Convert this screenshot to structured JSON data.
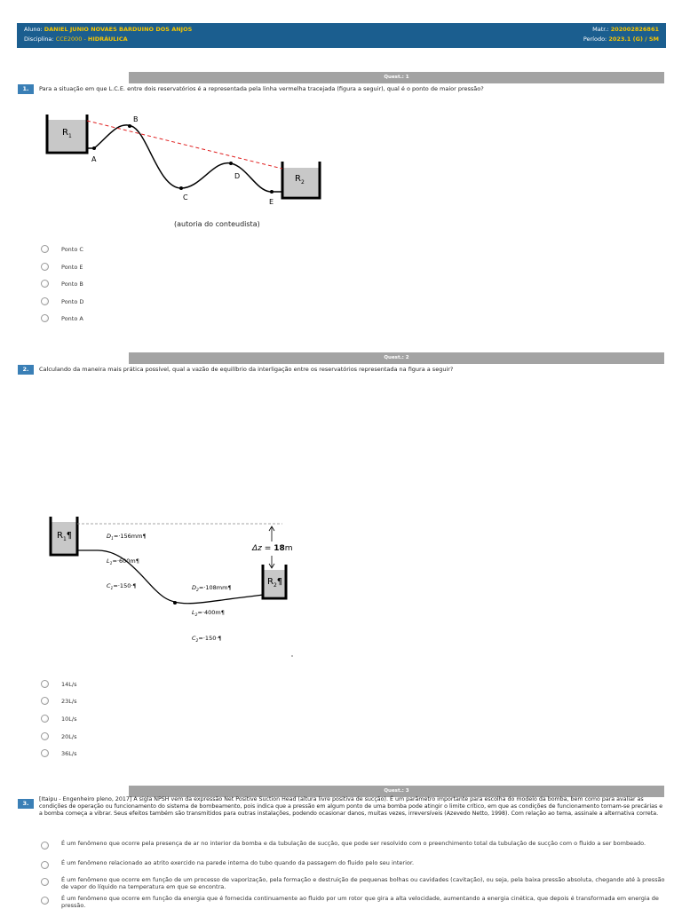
{
  "header": {
    "aluno_label": "Aluno:",
    "aluno_name": "DANIEL JUNIO NOVAES BARDUINO DOS ANJOS",
    "disciplina_label": "Disciplina:",
    "disciplina_code": "CCE2000 -",
    "disciplina_name": "HIDRÁULICA",
    "matr_label": "Matr.:",
    "matr_value": "202002826861",
    "periodo_label": "Período:",
    "periodo_value": "2023.1 (G) / SM"
  },
  "questions": [
    {
      "bar": "Quest.: 1",
      "number": "1.",
      "text": "Para a situação em que L.C.E. entre dois reservatórios é a representada pela linha vermelha tracejada (figura a seguir), qual é o ponto de maior pressão?",
      "figure": {
        "r1": "R",
        "r1_sub": "1",
        "r2": "R",
        "r2_sub": "2",
        "points": [
          "A",
          "B",
          "C",
          "D",
          "E"
        ],
        "caption": "(autoria do conteudista)"
      },
      "options": [
        "Ponto C",
        "Ponto E",
        "Ponto B",
        "Ponto D",
        "Ponto A"
      ]
    },
    {
      "bar": "Quest.: 2",
      "number": "2.",
      "text": "Calculando da maneira mais prática possível, qual a vazão de equilíbrio da interligação entre os reservatórios representada na figura a seguir?",
      "figure": {
        "r1": "R",
        "r1_sub": "1",
        "r1_mark": "¶",
        "r2": "R",
        "r2_sub": "2",
        "r2_mark": "¶",
        "d1": "D",
        "d1_sub": "1",
        "d1_val": "=·156mm¶",
        "l1": "L",
        "l1_sub": "1",
        "l1_val": "=·600m¶",
        "c1": "C",
        "c1_sub": "1",
        "c1_val": "=·150·¶",
        "d2": "D",
        "d2_sub": "2",
        "d2_val": "=·108mm¶",
        "l2": "L",
        "l2_sub": "2",
        "l2_val": "=·400m¶",
        "c2": "C",
        "c2_sub": "2",
        "c2_val": "=·150·¶",
        "dz_label": "Δz",
        "dz_eq": "=",
        "dz_val": "18",
        "dz_unit": "m"
      },
      "options": [
        "14L/s",
        "23L/s",
        "10L/s",
        "20L/s",
        "36L/s"
      ]
    },
    {
      "bar": "Quest.: 3",
      "number": "3.",
      "text": "[Itaipu - Engenheiro pleno, 2017] A sigla NPSH vem da expressão Net Positive Suction Head (altura livre positiva de sucção). É um parâmetro importante para escolha do modelo da bomba, bem como para avaliar as condições de operação ou funcionamento do sistema de bombeamento, pois indica que a pressão em algum ponto de uma bomba pode atingir o limite crítico, em que as condições de funcionamento tornam-se precárias e a bomba começa a vibrar. Seus efeitos também são transmitidos para outras instalações, podendo ocasionar danos, muitas vezes, irreversíveis (Azevedo Netto, 1998). Com relação ao tema, assinale a alternativa correta.",
      "options": [
        "É um fenômeno que ocorre pela presença de ar no interior da bomba e da tubulação de sucção, que pode ser resolvido com o preenchimento total da tubulação de sucção com o fluido a ser bombeado.",
        "É um fenômeno relacionado ao atrito exercido na parede interna do tubo quando da passagem do fluido pelo seu interior.",
        "É um fenômeno que ocorre em função de um processo de vaporização, pela formação e destruição de pequenas bolhas ou cavidades (cavitação), ou seja, pela baixa pressão absoluta, chegando até à pressão de vapor do líquido na temperatura em que se encontra.",
        "É um fenômeno que ocorre em função da energia que é fornecida continuamente ao fluido por um rotor que gira a alta velocidade, aumentando a energia cinética, que depois é transformada em energia de pressão."
      ]
    }
  ]
}
